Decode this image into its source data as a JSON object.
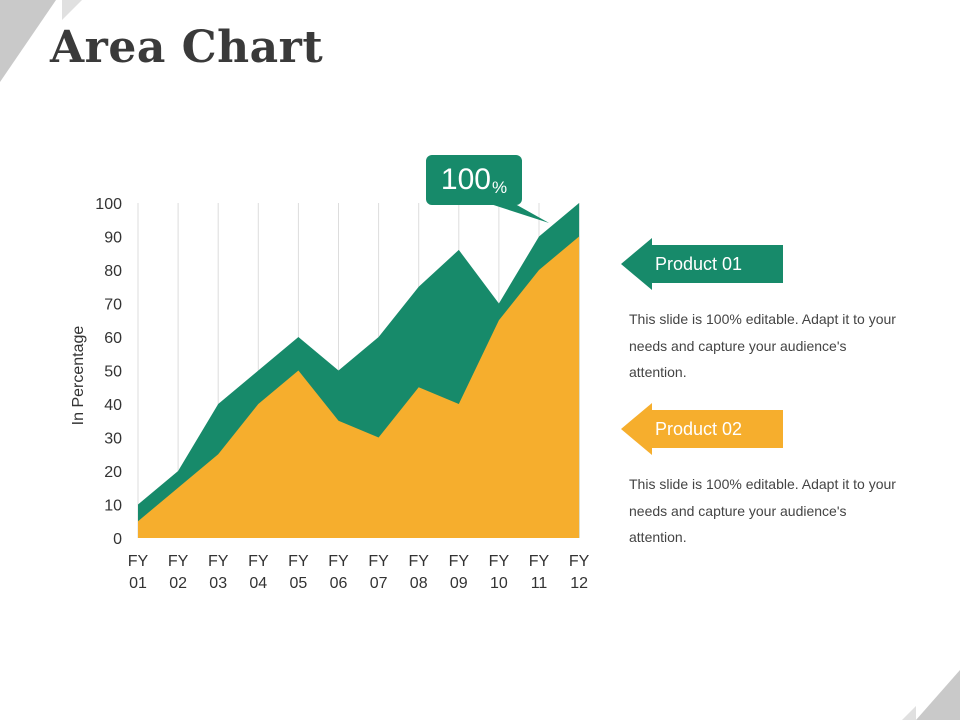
{
  "slide": {
    "title": "Area Chart",
    "accent_green": "#178a6a",
    "accent_yellow": "#f6ae2d"
  },
  "callout": {
    "value": "100",
    "unit": "%"
  },
  "legend": [
    {
      "label": "Product 01",
      "color": "#178a6a",
      "description": "This slide is 100% editable. Adapt it to your needs and capture your audience's attention."
    },
    {
      "label": "Product 02",
      "color": "#f6ae2d",
      "description": "This slide is 100% editable. Adapt it to your needs and capture your audience's attention."
    }
  ],
  "chart_data": {
    "type": "area",
    "categories": [
      [
        "FY",
        "01"
      ],
      [
        "FY",
        "02"
      ],
      [
        "FY",
        "03"
      ],
      [
        "FY",
        "04"
      ],
      [
        "FY",
        "05"
      ],
      [
        "FY",
        "06"
      ],
      [
        "FY",
        "07"
      ],
      [
        "FY",
        "08"
      ],
      [
        "FY",
        "09"
      ],
      [
        "FY",
        "10"
      ],
      [
        "FY",
        "11"
      ],
      [
        "FY",
        "12"
      ]
    ],
    "series": [
      {
        "name": "Product 01",
        "color": "#178a6a",
        "values": [
          10,
          20,
          40,
          50,
          60,
          50,
          60,
          75,
          86,
          70,
          90,
          100
        ]
      },
      {
        "name": "Product 02",
        "color": "#f6ae2d",
        "values": [
          5,
          15,
          25,
          40,
          50,
          35,
          30,
          45,
          40,
          65,
          80,
          90
        ]
      }
    ],
    "ylabel": "In Percentage",
    "ylim": [
      0,
      100
    ],
    "yticks": [
      0,
      10,
      20,
      30,
      40,
      50,
      60,
      70,
      80,
      90,
      100
    ],
    "grid": "vertical",
    "stacked": false
  }
}
